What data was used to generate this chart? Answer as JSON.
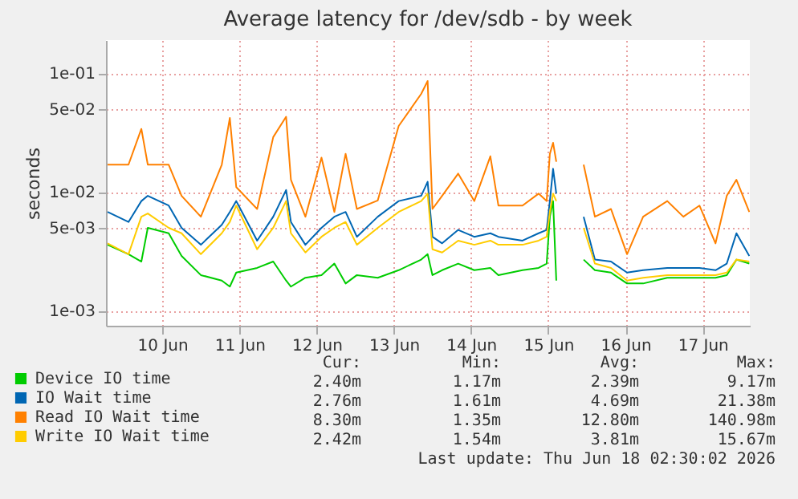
{
  "chart_data": {
    "type": "line",
    "title": "Average latency for /dev/sdb - by week",
    "ylabel": "seconds",
    "log": "y",
    "grid": true,
    "legend": "bottom",
    "marker": "none",
    "line_style": "solid",
    "x": [
      "2026-06-09T19:00",
      "2026-06-10T01:30",
      "2026-06-10T05:30",
      "2026-06-10T07:30",
      "2026-06-10T14:00",
      "2026-06-10T18:00",
      "2026-06-11T00:00",
      "2026-06-11T06:30",
      "2026-06-11T09:00",
      "2026-06-11T11:00",
      "2026-06-11T17:30",
      "2026-06-11T22:30",
      "2026-06-12T02:30",
      "2026-06-12T04:00",
      "2026-06-12T08:30",
      "2026-06-12T13:30",
      "2026-06-12T17:30",
      "2026-06-12T21:00",
      "2026-06-13T00:30",
      "2026-06-13T07:00",
      "2026-06-13T13:30",
      "2026-06-13T20:30",
      "2026-06-13T22:30",
      "2026-06-14T00:00",
      "2026-06-14T03:00",
      "2026-06-14T08:00",
      "2026-06-14T13:00",
      "2026-06-14T18:00",
      "2026-06-14T20:30",
      "2026-06-15T04:00",
      "2026-06-15T09:00",
      "2026-06-15T11:30",
      "2026-06-15T12:30",
      "2026-06-15T13:30",
      "2026-06-15T14:30",
      "2026-06-15T18:00",
      "2026-06-15T23:00",
      "2026-06-16T02:30",
      "2026-06-16T07:30",
      "2026-06-16T12:30",
      "2026-06-16T17:30",
      "2026-06-17T01:00",
      "2026-06-17T06:00",
      "2026-06-17T11:00",
      "2026-06-17T16:00",
      "2026-06-17T19:30",
      "2026-06-17T22:30",
      "2026-06-18T02:30"
    ],
    "xlim": [
      "2026-06-09T18:30",
      "2026-06-18T02:40"
    ],
    "xticks": [
      {
        "value": "2026-06-10T12:00",
        "label": "10 Jun"
      },
      {
        "value": "2026-06-11T12:00",
        "label": "11 Jun"
      },
      {
        "value": "2026-06-12T12:00",
        "label": "12 Jun"
      },
      {
        "value": "2026-06-13T12:00",
        "label": "13 Jun"
      },
      {
        "value": "2026-06-14T12:00",
        "label": "14 Jun"
      },
      {
        "value": "2026-06-15T12:00",
        "label": "15 Jun"
      },
      {
        "value": "2026-06-16T12:00",
        "label": "16 Jun"
      },
      {
        "value": "2026-06-17T12:00",
        "label": "17 Jun"
      }
    ],
    "ylim": [
      0.00075,
      0.19
    ],
    "yticks": [
      {
        "value": 0.001,
        "label": "1e-03"
      },
      {
        "value": 0.005,
        "label": "5e-03"
      },
      {
        "value": 0.01,
        "label": "1e-02"
      },
      {
        "value": 0.05,
        "label": "5e-02"
      },
      {
        "value": 0.1,
        "label": "1e-01"
      }
    ],
    "series": [
      {
        "name": "Device IO time",
        "color": "#00cc00",
        "values": [
          0.0036,
          0.003,
          0.0026,
          0.005,
          0.0045,
          0.0029,
          0.002,
          0.0018,
          0.0016,
          0.0021,
          0.0023,
          0.0026,
          0.0018,
          0.0016,
          0.0019,
          0.002,
          0.0025,
          0.0017,
          0.002,
          0.0019,
          0.0022,
          0.0027,
          0.003,
          0.002,
          0.0022,
          0.0025,
          0.0022,
          0.0023,
          0.002,
          0.0022,
          0.0023,
          0.0025,
          0.0062,
          0.0084,
          0.0018,
          null,
          0.0027,
          0.0022,
          0.0021,
          0.0017,
          0.0017,
          0.0019,
          0.0019,
          0.0019,
          0.0019,
          0.002,
          0.0027,
          0.0025
        ]
      },
      {
        "name": "IO Wait time",
        "color": "#0066b3",
        "values": [
          0.0068,
          0.0056,
          0.0084,
          0.0093,
          0.0077,
          0.005,
          0.0036,
          0.0053,
          0.0068,
          0.0084,
          0.0039,
          0.0062,
          0.0104,
          0.0056,
          0.0036,
          0.005,
          0.0062,
          0.0068,
          0.0042,
          0.0062,
          0.0084,
          0.0093,
          0.0122,
          0.0042,
          0.0037,
          0.0048,
          0.0042,
          0.0045,
          0.0042,
          0.0039,
          0.0045,
          0.0048,
          0.0084,
          0.0157,
          0.0097,
          null,
          0.0062,
          0.0027,
          0.0026,
          0.0021,
          0.0022,
          0.0023,
          0.0023,
          0.0023,
          0.0022,
          0.0025,
          0.0045,
          0.0029
        ]
      },
      {
        "name": "Read IO Wait time",
        "color": "#ff8000",
        "values": [
          0.017,
          0.017,
          0.034,
          0.017,
          0.017,
          0.0093,
          0.0062,
          0.017,
          0.042,
          0.011,
          0.0072,
          0.029,
          0.043,
          0.0127,
          0.0062,
          0.0195,
          0.0068,
          0.021,
          0.0072,
          0.0085,
          0.036,
          0.067,
          0.086,
          0.0072,
          0.0093,
          0.0143,
          0.0084,
          0.02,
          0.0077,
          0.0077,
          0.0097,
          0.0084,
          0.021,
          0.026,
          0.018,
          null,
          0.017,
          0.0062,
          0.0072,
          0.003,
          0.0062,
          0.0084,
          0.0062,
          0.0077,
          0.0037,
          0.0093,
          0.0127,
          0.0068
        ]
      },
      {
        "name": "Write IO Wait time",
        "color": "#ffcc00",
        "values": [
          0.0037,
          0.003,
          0.0062,
          0.0066,
          0.005,
          0.0045,
          0.003,
          0.0045,
          0.0056,
          0.0077,
          0.0033,
          0.005,
          0.0084,
          0.0045,
          0.0031,
          0.0042,
          0.005,
          0.0056,
          0.0036,
          0.005,
          0.0068,
          0.0084,
          0.0097,
          0.0033,
          0.0031,
          0.0039,
          0.0036,
          0.0039,
          0.0036,
          0.0036,
          0.0039,
          0.0042,
          0.0068,
          0.0097,
          0.0084,
          null,
          0.005,
          0.0025,
          0.0023,
          0.0018,
          0.0019,
          0.002,
          0.002,
          0.002,
          0.002,
          0.0021,
          0.0027,
          0.0026
        ]
      }
    ],
    "annotations": [
      "Cur:",
      "Min:",
      "Avg:",
      "Max:",
      "2.40m",
      "1.17m",
      "2.39m",
      "9.17m",
      "2.76m",
      "1.61m",
      "4.69m",
      "21.38m",
      "8.30m",
      "1.35m",
      "12.80m",
      "140.98m",
      "2.42m",
      "1.54m",
      "3.81m",
      "15.67m",
      "Last update: Thu Jun 18 02:30:02 2026"
    ]
  }
}
